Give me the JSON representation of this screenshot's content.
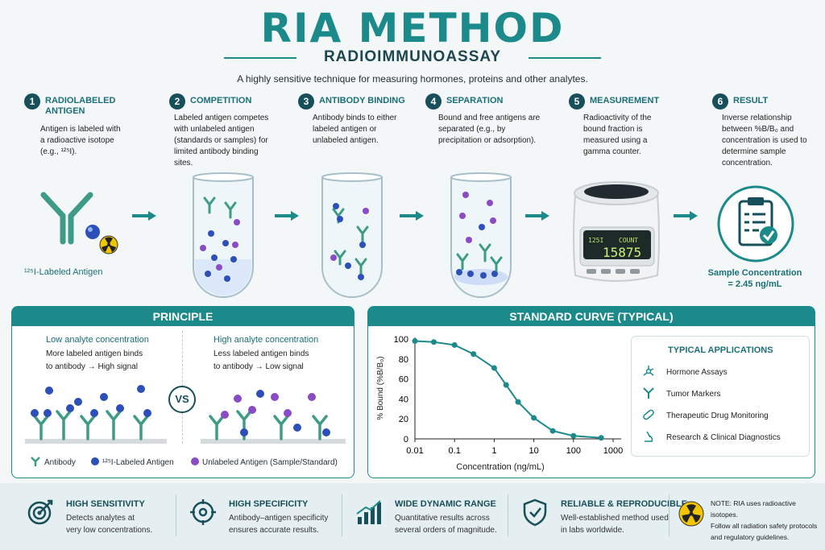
{
  "title": "RIA METHOD",
  "subtitle": "RADIOIMMUNOASSAY",
  "tagline": "A highly sensitive technique for measuring hormones, proteins and other analytes.",
  "steps": [
    {
      "num": "1",
      "title": "RADIOLABELED ANTIGEN",
      "desc": "Antigen is labeled with a radioactive isotope (e.g., ¹²⁵I)."
    },
    {
      "num": "2",
      "title": "COMPETITION",
      "desc": "Labeled antigen competes with unlabeled antigen (standards or samples) for limited antibody binding sites."
    },
    {
      "num": "3",
      "title": "ANTIBODY BINDING",
      "desc": "Antibody binds to either labeled antigen or unlabeled antigen."
    },
    {
      "num": "4",
      "title": "SEPARATION",
      "desc": "Bound and free antigens are separated (e.g., by precipitation or adsorption)."
    },
    {
      "num": "5",
      "title": "MEASUREMENT",
      "desc": "Radioactivity of the bound fraction is measured using a gamma counter."
    },
    {
      "num": "6",
      "title": "RESULT",
      "desc": "Inverse relationship between %B/B₀ and concentration is used to determine sample concentration."
    }
  ],
  "labeled_antigen_caption": "¹²⁵I-Labeled Antigen",
  "counter": {
    "isotope": "125I",
    "label": "COUNT",
    "value": "15875"
  },
  "result": {
    "line1": "Sample Concentration",
    "line2": "= 2.45 ng/mL"
  },
  "principle": {
    "header": "PRINCIPLE",
    "low_title": "Low analyte concentration",
    "low_desc1": "More labeled antigen binds",
    "low_desc2": "to antibody → High signal",
    "vs": "VS",
    "high_title": "High analyte concentration",
    "high_desc1": "Less labeled antigen binds",
    "high_desc2": "to antibody → Low signal",
    "legend": {
      "antibody": "Antibody",
      "labeled": "¹²⁵I-Labeled Antigen",
      "unlabeled": "Unlabeled Antigen (Sample/Standard)"
    }
  },
  "curve": {
    "header": "STANDARD CURVE (TYPICAL)"
  },
  "chart_data": {
    "type": "line",
    "title": "STANDARD CURVE (TYPICAL)",
    "xlabel": "Concentration (ng/mL)",
    "ylabel": "% Bound (%B/B₀)",
    "xscale": "log",
    "xlim": [
      0.01,
      1000
    ],
    "ylim": [
      0,
      100
    ],
    "xticks": [
      "0.01",
      "0.1",
      "1",
      "10",
      "100",
      "1000"
    ],
    "yticks": [
      "0",
      "20",
      "40",
      "60",
      "80",
      "100"
    ],
    "x": [
      0.01,
      0.03,
      0.1,
      0.3,
      1,
      2,
      4,
      10,
      30,
      100,
      500
    ],
    "y": [
      98,
      97,
      94,
      85,
      71,
      54,
      37,
      21,
      8,
      3,
      1
    ],
    "grid": false
  },
  "applications": {
    "title": "TYPICAL APPLICATIONS",
    "items": [
      "Hormone Assays",
      "Tumor Markers",
      "Therapeutic Drug Monitoring",
      "Research & Clinical Diagnostics"
    ]
  },
  "features": [
    {
      "title": "HIGH SENSITIVITY",
      "line1": "Detects analytes at",
      "line2": "very low concentrations."
    },
    {
      "title": "HIGH SPECIFICITY",
      "line1": "Antibody–antigen specificity",
      "line2": "ensures accurate results."
    },
    {
      "title": "WIDE DYNAMIC RANGE",
      "line1": "Quantitative results across",
      "line2": "several orders of magnitude."
    },
    {
      "title": "RELIABLE & REPRODUCIBLE",
      "line1": "Well-established method used",
      "line2": "in labs worldwide."
    }
  ],
  "note": {
    "line1": "NOTE: RIA uses radioactive isotopes.",
    "line2": "Follow all radiation safety protocols",
    "line3": "and regulatory guidelines."
  },
  "colors": {
    "teal": "#1c8a8b",
    "dark": "#17505a",
    "labeled": "#2c4fb8",
    "unlabeled": "#8a4cc4"
  }
}
